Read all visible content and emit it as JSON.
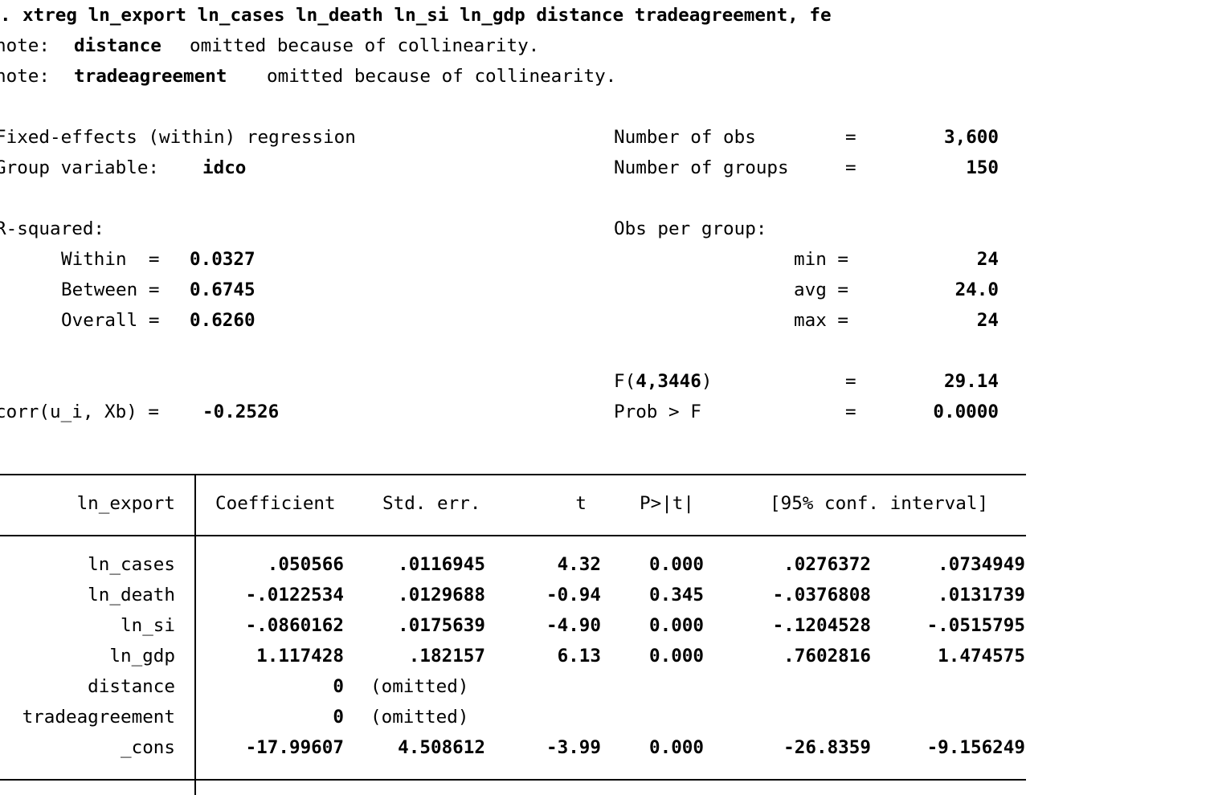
{
  "command": {
    "prompt": ".",
    "text": "xtreg ln_export ln_cases ln_death ln_si ln_gdp distance tradeagreement, fe"
  },
  "notes": [
    {
      "prefix": "note:",
      "var": "distance",
      "msg": "omitted because of collinearity."
    },
    {
      "prefix": "note:",
      "var": "tradeagreement",
      "msg": "omitted because of collinearity."
    }
  ],
  "header": {
    "model_title": "Fixed-effects (within) regression",
    "group_label": "Group variable:",
    "group_var": "idco",
    "rsq_label": "R-squared:",
    "within_label": "Within  =",
    "within_value": "0.0327",
    "between_label": "Between =",
    "between_value": "0.6745",
    "overall_label": "Overall =",
    "overall_value": "0.6260",
    "corr_label": "corr(u_i, Xb) =",
    "corr_value": "-0.2526",
    "nobs_label": "Number of obs",
    "nobs_eq": "=",
    "nobs_value": "3,600",
    "ngroups_label": "Number of groups",
    "ngroups_eq": "=",
    "ngroups_value": "150",
    "obs_per_group_label": "Obs per group:",
    "min_label": "min =",
    "min_value": "24",
    "avg_label": "avg =",
    "avg_value": "24.0",
    "max_label": "max =",
    "max_value": "24",
    "f_label_prefix": "F(",
    "f_df": "4,3446",
    "f_label_suffix": ")",
    "f_eq": "=",
    "f_value": "29.14",
    "probf_label": "Prob > F",
    "probf_eq": "=",
    "probf_value": "0.0000"
  },
  "table": {
    "depvar": "ln_export",
    "columns": [
      "Coefficient",
      "Std. err.",
      "t",
      "P>|t|",
      "[95% conf. interval]"
    ],
    "rows": [
      {
        "var": "ln_cases",
        "coef": ".050566",
        "se": ".0116945",
        "t": "4.32",
        "p": "0.000",
        "lo": ".0276372",
        "hi": ".0734949"
      },
      {
        "var": "ln_death",
        "coef": "-.0122534",
        "se": ".0129688",
        "t": "-0.94",
        "p": "0.345",
        "lo": "-.0376808",
        "hi": ".0131739"
      },
      {
        "var": "ln_si",
        "coef": "-.0860162",
        "se": ".0175639",
        "t": "-4.90",
        "p": "0.000",
        "lo": "-.1204528",
        "hi": "-.0515795"
      },
      {
        "var": "ln_gdp",
        "coef": "1.117428",
        "se": ".182157",
        "t": "6.13",
        "p": "0.000",
        "lo": ".7602816",
        "hi": "1.474575"
      },
      {
        "var": "distance",
        "coef": "0",
        "se": "(omitted)",
        "t": "",
        "p": "",
        "lo": "",
        "hi": ""
      },
      {
        "var": "tradeagreement",
        "coef": "0",
        "se": "(omitted)",
        "t": "",
        "p": "",
        "lo": "",
        "hi": ""
      },
      {
        "var": "_cons",
        "coef": "-17.99607",
        "se": "4.508612",
        "t": "-3.99",
        "p": "0.000",
        "lo": "-26.8359",
        "hi": "-9.156249"
      }
    ]
  }
}
